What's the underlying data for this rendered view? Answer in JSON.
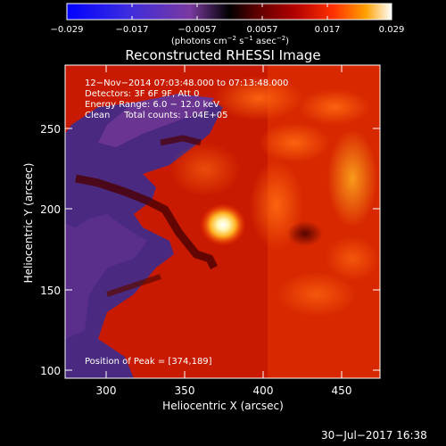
{
  "colorbar": {
    "tick_labels": [
      "−0.029",
      "−0.017",
      "−0.0057",
      "0.0057",
      "0.017",
      "0.029"
    ],
    "units_prefix": "(photons cm",
    "units_exp1": "−2",
    "units_mid": " s",
    "units_exp2": "−1",
    "units_mid2": " asec",
    "units_exp3": "−2",
    "units_suffix": ")"
  },
  "plot": {
    "title": "Reconstructed RHESSI Image",
    "info_lines": [
      "12−Nov−2014 07:03:48.000 to 07:13:48.000",
      "Detectors: 3F 6F 9F, Att 0",
      "Energy Range: 6.0 − 12.0 keV",
      "Clean     Total counts: 1.04E+05"
    ],
    "peak_label": "Position of Peak = [374,189]",
    "x_axis_label": "Heliocentric X (arcsec)",
    "y_axis_label": "Heliocentric Y (arcsec)",
    "x_ticks": [
      "300",
      "350",
      "400",
      "450"
    ],
    "y_ticks": [
      "100",
      "150",
      "200",
      "250"
    ]
  },
  "footer": {
    "timestamp": "30−Jul−2017 16:38"
  }
}
